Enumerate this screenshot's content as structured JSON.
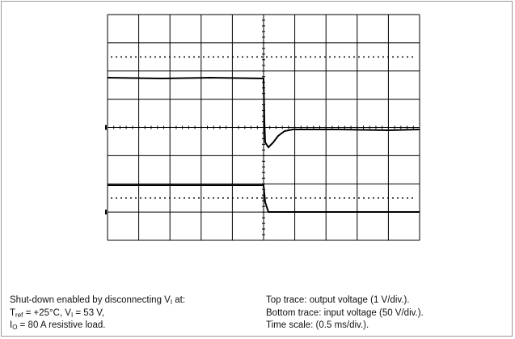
{
  "caption": {
    "left": [
      [
        {
          "t": "Shut-down enabled by disconnecting V"
        },
        {
          "sub": "I"
        },
        {
          "t": " at:"
        }
      ],
      [
        {
          "t": "T"
        },
        {
          "sub": "ref"
        },
        {
          "t": " = +25°C, V"
        },
        {
          "sub": "I"
        },
        {
          "t": " = 53 V,"
        }
      ],
      [
        {
          "t": "I"
        },
        {
          "sub": "O"
        },
        {
          "t": " = 80 A resistive load."
        }
      ]
    ],
    "right": [
      [
        {
          "t": "Top trace: output voltage (1 V/div.)."
        }
      ],
      [
        {
          "t": "Bottom trace: input voltage (50 V/div.)."
        }
      ],
      [
        {
          "t": "Time scale: (0.5 ms/div.)."
        }
      ]
    ]
  }
}
